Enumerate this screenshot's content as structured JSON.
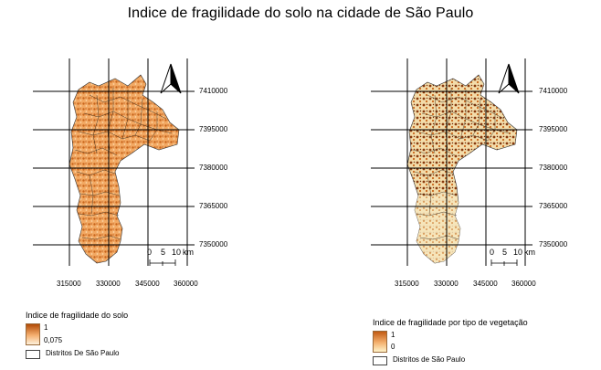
{
  "title": "Indice de fragilidade do solo na cidade de São Paulo",
  "maps": [
    {
      "id": "solo",
      "y_labels": [
        "7410000",
        "7395000",
        "7380000",
        "7365000",
        "7350000"
      ],
      "x_labels": [
        "315000",
        "330000",
        "345000",
        "360000"
      ],
      "scalebar": {
        "ticks": [
          "0",
          "5",
          "10"
        ],
        "unit": "km"
      },
      "fill_dark": "#b5540e",
      "fill_light": "#f7c58f"
    },
    {
      "id": "vegetacao",
      "y_labels": [
        "7410000",
        "7395000",
        "7380000",
        "7365000",
        "7350000"
      ],
      "x_labels": [
        "315000",
        "330000",
        "345000",
        "360000"
      ],
      "scalebar": {
        "ticks": [
          "0",
          "5",
          "10"
        ],
        "unit": "km"
      },
      "fill_dark": "#7a2e0a",
      "fill_light": "#f7e3b6"
    }
  ],
  "legend_solo": {
    "title": "Indice de fragilidade do solo",
    "max": "1",
    "min": "0,075",
    "districts": "Distritos De São Paulo"
  },
  "legend_veg": {
    "title": "Indice de fragilidade por tipo de vegetação",
    "max": "1",
    "min": "0",
    "districts": "Distritos de São Paulo"
  }
}
